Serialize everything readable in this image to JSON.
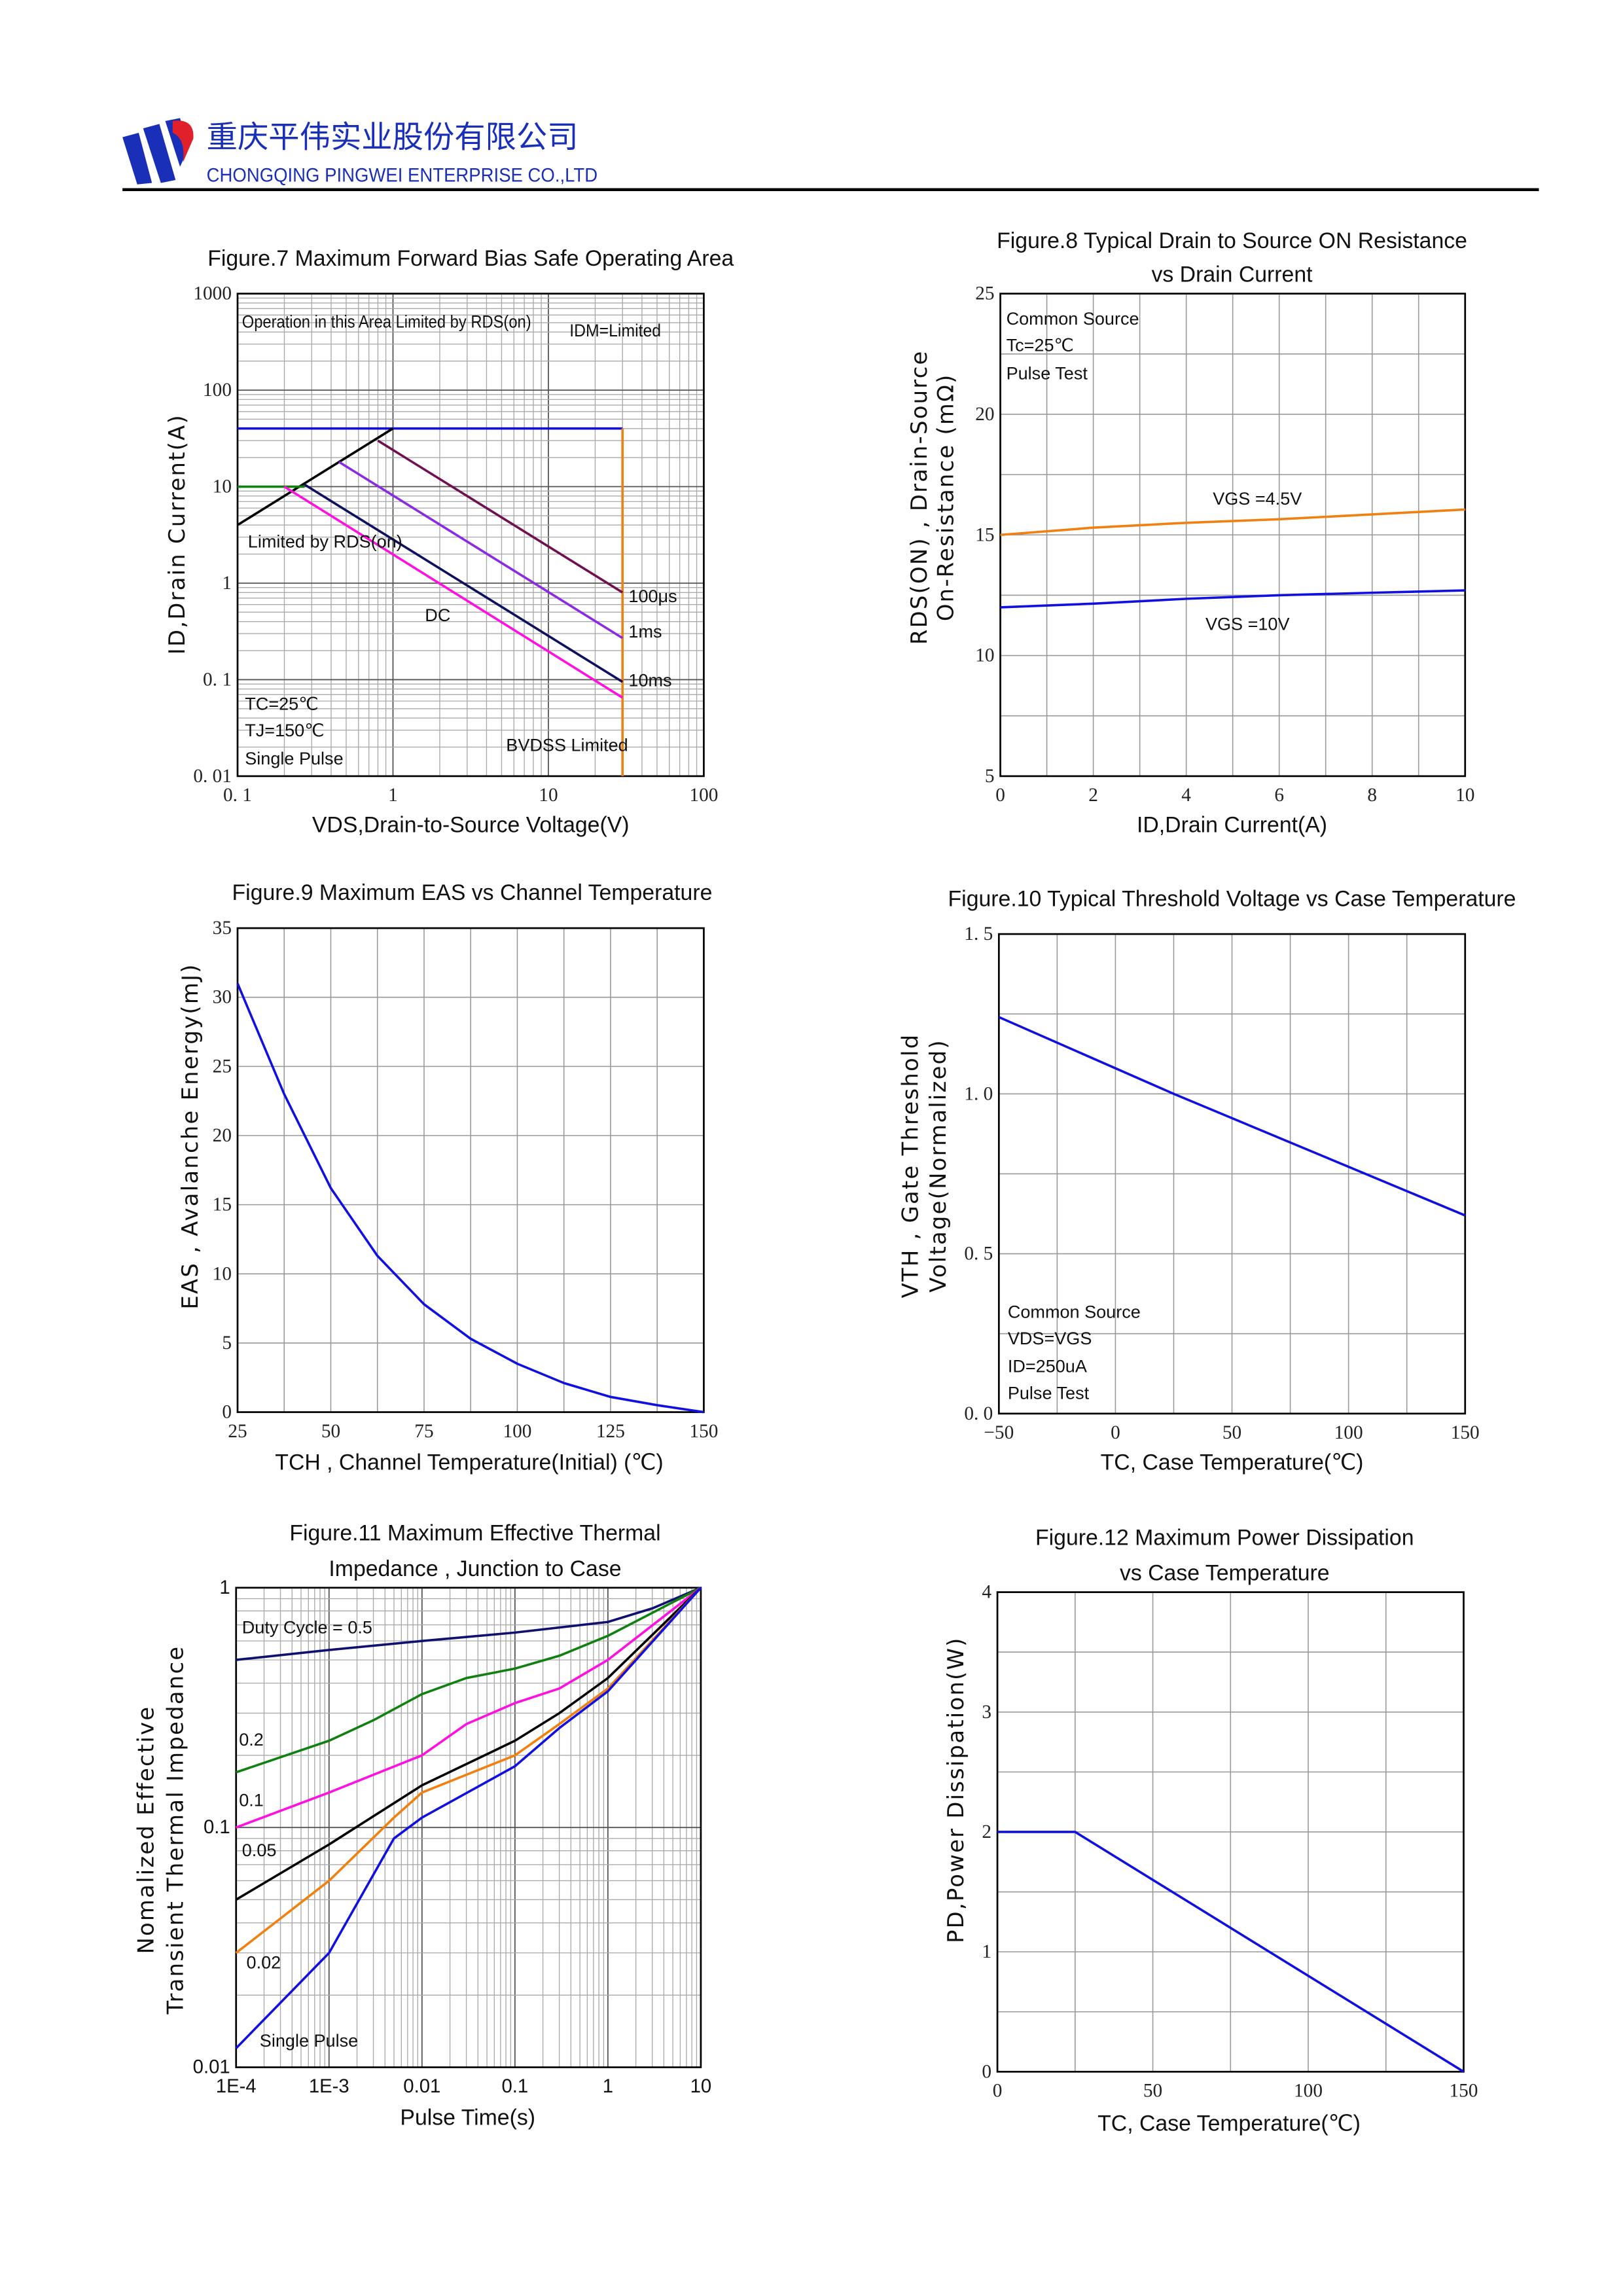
{
  "header": {
    "company_cn": "重庆平伟实业股份有限公司",
    "company_en": "CHONGQING PINGWEI ENTERPRISE CO.,LTD",
    "logo_colors": [
      "#1a2fb8",
      "#e0202a"
    ]
  },
  "chart_data": [
    {
      "type": "line",
      "title": [
        "Figure.7 Maximum Forward Bias Safe Operating Area"
      ],
      "xlabel": "VDS,Drain-to-Source Voltage(V)",
      "ylabel": [
        "ID,Drain Current(A)"
      ],
      "xscale": "log",
      "yscale": "log",
      "xlim": [
        0.1,
        100
      ],
      "ylim": [
        0.01,
        1000
      ],
      "xticks": [
        "0. 1",
        "1",
        "10",
        "100"
      ],
      "yticks": [
        "0. 01",
        "0. 1",
        "1",
        "10",
        "100",
        "1000"
      ],
      "grid": true,
      "series": [
        {
          "name": "IDM=Limited",
          "color": "#1010e0",
          "x": [
            0.1,
            30
          ],
          "y": [
            40,
            40
          ]
        },
        {
          "name": "BVDSS Limited",
          "color": "#f08010",
          "x": [
            30,
            30
          ],
          "y": [
            40,
            0.01
          ]
        },
        {
          "name": "Limited by RDS(on)",
          "color": "#000000",
          "x": [
            0.1,
            1
          ],
          "y": [
            4,
            40
          ]
        },
        {
          "color": "#108010",
          "x": [
            0.1,
            0.27
          ],
          "y": [
            10,
            10
          ]
        },
        {
          "name": "100μs",
          "color": "#701050",
          "x": [
            0.8,
            30
          ],
          "y": [
            30,
            0.8
          ]
        },
        {
          "name": "1ms",
          "color": "#8a2be2",
          "x": [
            0.45,
            30
          ],
          "y": [
            18,
            0.27
          ]
        },
        {
          "name": "10ms",
          "color": "#101060",
          "x": [
            0.27,
            30
          ],
          "y": [
            10.5,
            0.095
          ]
        },
        {
          "name": "DC",
          "color": "#ff10e0",
          "x": [
            0.2,
            30
          ],
          "y": [
            10,
            0.065
          ]
        }
      ],
      "annotations": [
        "Operation in this Area Limited by RDS(on)",
        "IDM=Limited",
        "Limited by RDS(on)",
        "DC",
        "100μs",
        "1ms",
        "10ms",
        "TC=25℃",
        "TJ=150℃",
        "Single Pulse",
        "BVDSS Limited"
      ]
    },
    {
      "type": "line",
      "title": [
        "Figure.8 Typical Drain to Source ON Resistance",
        "vs Drain Current"
      ],
      "xlabel": "ID,Drain Current(A)",
      "ylabel": [
        "RDS(ON) , Drain-Source",
        "On-Resistance (mΩ)"
      ],
      "xlim": [
        0,
        10
      ],
      "ylim": [
        5,
        25
      ],
      "xticks": [
        "0",
        "2",
        "4",
        "6",
        "8",
        "10"
      ],
      "yticks": [
        "5",
        "10",
        "15",
        "20",
        "25"
      ],
      "grid": true,
      "series": [
        {
          "name": "VGS =4.5V",
          "color": "#f08010",
          "x": [
            0,
            2,
            4,
            6,
            8,
            10
          ],
          "y": [
            15,
            15.3,
            15.5,
            15.65,
            15.85,
            16.05
          ]
        },
        {
          "name": "VGS =10V",
          "color": "#1010e0",
          "x": [
            0,
            2,
            4,
            6,
            8,
            10
          ],
          "y": [
            12,
            12.15,
            12.35,
            12.5,
            12.6,
            12.7
          ]
        }
      ],
      "annotations": [
        "Common Source",
        "Tc=25℃",
        "Pulse Test",
        "VGS =4.5V",
        "VGS =10V"
      ]
    },
    {
      "type": "line",
      "title": [
        "Figure.9 Maximum EAS vs Channel Temperature"
      ],
      "xlabel": "TCH , Channel Temperature(Initial) (℃)",
      "ylabel": [
        "EAS , Avalanche Energy(mJ)"
      ],
      "xlim": [
        25,
        150
      ],
      "ylim": [
        0,
        35
      ],
      "xticks": [
        "25",
        "50",
        "75",
        "100",
        "125",
        "150"
      ],
      "yticks": [
        "0",
        "5",
        "10",
        "15",
        "20",
        "25",
        "30",
        "35"
      ],
      "grid": true,
      "series": [
        {
          "color": "#1010e0",
          "x": [
            25,
            37.5,
            50,
            62.5,
            75,
            87.5,
            100,
            112.5,
            125,
            137.5,
            150
          ],
          "y": [
            31,
            23,
            16.2,
            11.3,
            7.8,
            5.3,
            3.5,
            2.1,
            1.1,
            0.5,
            0
          ]
        }
      ],
      "annotations": []
    },
    {
      "type": "line",
      "title": [
        "Figure.10 Typical Threshold Voltage vs Case Temperature"
      ],
      "xlabel": "TC, Case Temperature(℃)",
      "ylabel": [
        "VTH , Gate Threshold",
        "Voltage(Normalized)"
      ],
      "xlim": [
        -50,
        150
      ],
      "ylim": [
        0,
        1.5
      ],
      "xticks": [
        "−50",
        "0",
        "50",
        "100",
        "150"
      ],
      "yticks": [
        "0. 0",
        "0. 5",
        "1. 0",
        "1. 5"
      ],
      "grid": true,
      "series": [
        {
          "color": "#1010e0",
          "x": [
            -50,
            25,
            150
          ],
          "y": [
            1.24,
            1.0,
            0.62
          ]
        }
      ],
      "annotations": [
        "Common Source",
        "VDS=VGS",
        "ID=250uA",
        "Pulse Test"
      ]
    },
    {
      "type": "line",
      "title": [
        "Figure.11 Maximum Effective Thermal",
        "Impedance , Junction to Case"
      ],
      "xlabel": "Pulse Time(s)",
      "ylabel": [
        "Nomalized Effective",
        "Transient Thermal Impedance"
      ],
      "xscale": "log",
      "yscale": "log",
      "xlim": [
        0.0001,
        10
      ],
      "ylim": [
        0.01,
        1
      ],
      "xticks": [
        "1E-4",
        "1E-3",
        "0.01",
        "0.1",
        "1",
        "10"
      ],
      "yticks": [
        "0.01",
        "0.1",
        "1"
      ],
      "grid": true,
      "series": [
        {
          "name": "Duty Cycle = 0.5",
          "color": "#101070",
          "x": [
            0.0001,
            0.001,
            0.01,
            0.1,
            1,
            3,
            10
          ],
          "y": [
            0.5,
            0.55,
            0.6,
            0.65,
            0.72,
            0.82,
            1
          ]
        },
        {
          "name": "0.2",
          "color": "#108010",
          "x": [
            0.0001,
            0.001,
            0.003,
            0.01,
            0.03,
            0.1,
            0.3,
            1,
            10
          ],
          "y": [
            0.17,
            0.23,
            0.28,
            0.36,
            0.42,
            0.46,
            0.52,
            0.63,
            1
          ]
        },
        {
          "name": "0.1",
          "color": "#ff10e0",
          "x": [
            0.0001,
            0.001,
            0.01,
            0.03,
            0.1,
            0.3,
            1,
            10
          ],
          "y": [
            0.1,
            0.14,
            0.2,
            0.27,
            0.33,
            0.38,
            0.5,
            1
          ]
        },
        {
          "name": "0.05",
          "color": "#000000",
          "x": [
            0.0001,
            0.001,
            0.01,
            0.1,
            0.3,
            1,
            10
          ],
          "y": [
            0.05,
            0.085,
            0.15,
            0.23,
            0.3,
            0.42,
            1
          ]
        },
        {
          "name": "0.02",
          "color": "#f08010",
          "x": [
            0.0001,
            0.001,
            0.005,
            0.01,
            0.1,
            0.3,
            1,
            10
          ],
          "y": [
            0.03,
            0.06,
            0.11,
            0.14,
            0.2,
            0.27,
            0.38,
            1
          ]
        },
        {
          "name": "Single Pulse",
          "color": "#1010e0",
          "x": [
            0.0001,
            0.001,
            0.005,
            0.01,
            0.1,
            0.3,
            1,
            10
          ],
          "y": [
            0.012,
            0.03,
            0.09,
            0.11,
            0.18,
            0.26,
            0.37,
            1
          ]
        }
      ],
      "annotations": [
        "Duty Cycle = 0.5",
        "0.2",
        "0.1",
        "0.05",
        "0.02",
        "Single Pulse"
      ]
    },
    {
      "type": "line",
      "title": [
        "Figure.12 Maximum Power Dissipation",
        "vs Case Temperature"
      ],
      "xlabel": "TC, Case Temperature(℃)",
      "ylabel": [
        "PD,Power Dissipation(W)"
      ],
      "xlim": [
        0,
        150
      ],
      "ylim": [
        0,
        4
      ],
      "xticks": [
        "0",
        "50",
        "100",
        "150"
      ],
      "yticks": [
        "0",
        "1",
        "2",
        "3",
        "4"
      ],
      "grid": true,
      "series": [
        {
          "color": "#1010e0",
          "x": [
            0,
            25,
            150
          ],
          "y": [
            2,
            2,
            0
          ]
        }
      ],
      "annotations": []
    }
  ]
}
